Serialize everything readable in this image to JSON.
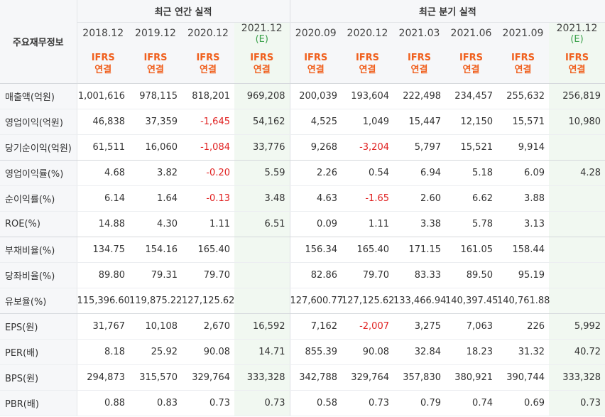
{
  "header": {
    "corner_label": "주요재무정보",
    "annual_title": "최근 연간 실적",
    "quarterly_title": "최근 분기 실적",
    "ifrs_line1": "IFRS",
    "ifrs_line2": "연결",
    "estimate_mark": "(E)"
  },
  "periods": [
    "2018.12",
    "2019.12",
    "2020.12",
    "2021.12",
    "2020.09",
    "2020.12",
    "2021.03",
    "2021.06",
    "2021.09",
    "2021.12"
  ],
  "rows": [
    {
      "label": "매출액(억원)",
      "values": [
        "1,001,616",
        "978,115",
        "818,201",
        "969,208",
        "200,039",
        "193,604",
        "222,498",
        "234,457",
        "255,632",
        "256,819"
      ]
    },
    {
      "label": "영업이익(억원)",
      "values": [
        "46,838",
        "37,359",
        "-1,645",
        "54,162",
        "4,525",
        "1,049",
        "15,447",
        "12,150",
        "15,571",
        "10,980"
      ]
    },
    {
      "label": "당기순이익(억원)",
      "values": [
        "61,511",
        "16,060",
        "-1,084",
        "33,776",
        "9,268",
        "-3,204",
        "5,797",
        "15,521",
        "9,914",
        ""
      ]
    },
    {
      "label": "영업이익률(%)",
      "values": [
        "4.68",
        "3.82",
        "-0.20",
        "5.59",
        "2.26",
        "0.54",
        "6.94",
        "5.18",
        "6.09",
        "4.28"
      ]
    },
    {
      "label": "순이익률(%)",
      "values": [
        "6.14",
        "1.64",
        "-0.13",
        "3.48",
        "4.63",
        "-1.65",
        "2.60",
        "6.62",
        "3.88",
        ""
      ]
    },
    {
      "label": "ROE(%)",
      "values": [
        "14.88",
        "4.30",
        "1.11",
        "6.51",
        "0.09",
        "1.11",
        "3.38",
        "5.78",
        "3.13",
        ""
      ]
    },
    {
      "label": "부채비율(%)",
      "values": [
        "134.75",
        "154.16",
        "165.40",
        "",
        "156.34",
        "165.40",
        "171.15",
        "161.05",
        "158.44",
        ""
      ]
    },
    {
      "label": "당좌비율(%)",
      "values": [
        "89.80",
        "79.31",
        "79.70",
        "",
        "82.86",
        "79.70",
        "83.33",
        "89.50",
        "95.19",
        ""
      ]
    },
    {
      "label": "유보율(%)",
      "values": [
        "115,396.60",
        "119,875.22",
        "127,125.62",
        "",
        "127,600.77",
        "127,125.62",
        "133,466.94",
        "140,397.45",
        "140,761.88",
        ""
      ]
    },
    {
      "label": "EPS(원)",
      "values": [
        "31,767",
        "10,108",
        "2,670",
        "16,592",
        "7,162",
        "-2,007",
        "3,275",
        "7,063",
        "226",
        "5,992"
      ]
    },
    {
      "label": "PER(배)",
      "values": [
        "8.18",
        "25.92",
        "90.08",
        "14.71",
        "855.39",
        "90.08",
        "32.84",
        "18.23",
        "31.32",
        "40.72"
      ]
    },
    {
      "label": "BPS(원)",
      "values": [
        "294,873",
        "315,570",
        "329,764",
        "333,328",
        "342,788",
        "329,764",
        "357,830",
        "380,921",
        "390,744",
        "333,328"
      ]
    },
    {
      "label": "PBR(배)",
      "values": [
        "0.88",
        "0.83",
        "0.73",
        "0.73",
        "0.58",
        "0.73",
        "0.79",
        "0.74",
        "0.69",
        "0.73"
      ]
    }
  ]
}
